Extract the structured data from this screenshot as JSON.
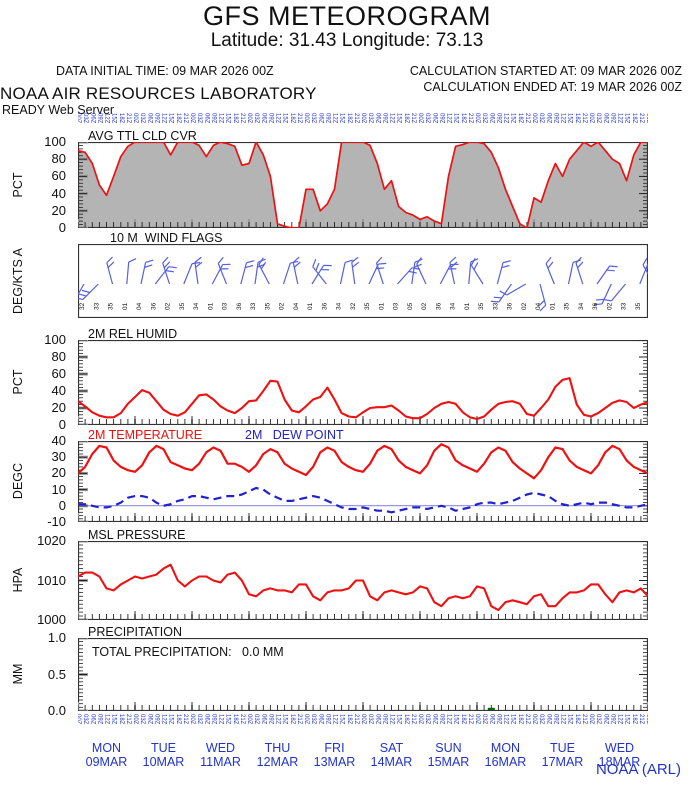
{
  "header": {
    "title": "GFS METEOROGRAM",
    "subtitle": "Latitude: 31.43 Longitude:  73.13",
    "data_initial_time": "DATA INITIAL TIME: 09 MAR 2026 00Z",
    "calc_started": "CALCULATION STARTED AT: 09 MAR 2026 00Z",
    "calc_ended": "CALCULATION ENDED AT: 19 MAR 2026 00Z",
    "org": "NOAA AIR RESOURCES LABORATORY",
    "server": "READY Web Server"
  },
  "footer": {
    "credit": "NOAA (ARL)"
  },
  "colors": {
    "red_line": "#ee1111",
    "blue_text": "#2233cc",
    "barb_blue": "#5560dd",
    "cloud_fill": "#b4b4b4",
    "axis": "#333333",
    "precip_green": "#006600"
  },
  "time_axis": {
    "start_hour": 0,
    "end_hour": 240,
    "tick_step_hours": 3,
    "tick_label_cycle": [
      "00Z",
      "03Z",
      "06Z",
      "09Z",
      "12Z",
      "15Z",
      "18Z",
      "21Z"
    ],
    "days": [
      {
        "name": "MON",
        "date": "09MAR"
      },
      {
        "name": "TUE",
        "date": "10MAR"
      },
      {
        "name": "WED",
        "date": "11MAR"
      },
      {
        "name": "THU",
        "date": "12MAR"
      },
      {
        "name": "FRI",
        "date": "13MAR"
      },
      {
        "name": "SAT",
        "date": "14MAR"
      },
      {
        "name": "SUN",
        "date": "15MAR"
      },
      {
        "name": "MON",
        "date": "16MAR"
      },
      {
        "name": "TUE",
        "date": "17MAR"
      },
      {
        "name": "WED",
        "date": "18MAR"
      }
    ]
  },
  "chart_data": [
    {
      "id": "cloud",
      "type": "area",
      "title": "AVG TTL CLD CVR",
      "ylabel": "PCT",
      "ylim": [
        0,
        100
      ],
      "ytick_vals": [
        0,
        20,
        40,
        60,
        80,
        100
      ],
      "yticks": [
        "0",
        "20",
        "40",
        "60",
        "80",
        "100"
      ],
      "minor_step": 4,
      "x_step_hours": 3,
      "values": [
        90,
        88,
        75,
        50,
        38,
        60,
        83,
        95,
        100,
        100,
        100,
        100,
        100,
        85,
        100,
        100,
        100,
        96,
        83,
        96,
        100,
        98,
        95,
        73,
        75,
        100,
        85,
        60,
        5,
        2,
        0,
        0,
        45,
        45,
        20,
        28,
        45,
        100,
        100,
        100,
        100,
        96,
        75,
        45,
        55,
        25,
        18,
        15,
        10,
        13,
        8,
        5,
        60,
        95,
        97,
        100,
        100,
        98,
        88,
        70,
        45,
        25,
        5,
        0,
        35,
        30,
        55,
        75,
        60,
        80,
        90,
        100,
        95,
        100,
        90,
        80,
        75,
        55,
        85,
        100,
        100
      ]
    },
    {
      "id": "wind",
      "type": "wind",
      "title": "10 M  WIND FLAGS",
      "ylabel": "DEG/KTS A",
      "barb_step_hours": 6,
      "barbs": [
        [
          -150,
          2
        ],
        [
          -135,
          3
        ],
        [
          -15,
          2
        ],
        [
          5,
          1
        ],
        [
          12,
          2
        ],
        [
          38,
          2
        ],
        [
          -18,
          2
        ],
        [
          22,
          1
        ],
        [
          -8,
          2
        ],
        [
          28,
          2
        ],
        [
          -22,
          1
        ],
        [
          15,
          2
        ],
        [
          8,
          2
        ],
        [
          -28,
          2
        ],
        [
          18,
          1
        ],
        [
          -12,
          2
        ],
        [
          32,
          2
        ],
        [
          -38,
          2
        ],
        [
          12,
          1
        ],
        [
          -8,
          2
        ],
        [
          25,
          2
        ],
        [
          -18,
          1
        ],
        [
          42,
          2
        ],
        [
          8,
          2
        ],
        [
          -25,
          1
        ],
        [
          28,
          2
        ],
        [
          -12,
          2
        ],
        [
          5,
          1
        ],
        [
          -32,
          2
        ],
        [
          15,
          2
        ],
        [
          -145,
          2
        ],
        [
          -120,
          1
        ],
        [
          165,
          2
        ],
        [
          -22,
          2
        ],
        [
          12,
          1
        ],
        [
          -18,
          2
        ],
        [
          35,
          2
        ],
        [
          -155,
          2
        ],
        [
          -140,
          1
        ],
        [
          22,
          2
        ],
        [
          -30,
          2
        ]
      ],
      "dir_labels": [
        "32",
        "33",
        "35",
        "01",
        "04",
        "36",
        "02",
        "35",
        "34",
        "01",
        "03",
        "36",
        "33",
        "35",
        "02",
        "04",
        "01",
        "36",
        "34",
        "32",
        "35",
        "01",
        "03",
        "05",
        "02",
        "36",
        "34",
        "01",
        "35",
        "33",
        "36",
        "02",
        "04",
        "01",
        "35",
        "34",
        "36",
        "02",
        "33",
        "35",
        "01"
      ]
    },
    {
      "id": "humid",
      "type": "line",
      "title": "2M REL HUMID",
      "ylabel": "PCT",
      "ylim": [
        0,
        100
      ],
      "ytick_vals": [
        0,
        20,
        40,
        60,
        80,
        100
      ],
      "yticks": [
        "0",
        "20",
        "40",
        "60",
        "80",
        "100"
      ],
      "minor_step": 4,
      "x_step_hours": 3,
      "values": [
        28,
        22,
        15,
        11,
        9,
        9,
        14,
        25,
        33,
        41,
        38,
        28,
        18,
        13,
        11,
        15,
        25,
        35,
        36,
        30,
        22,
        17,
        14,
        20,
        28,
        29,
        40,
        52,
        51,
        30,
        17,
        15,
        22,
        30,
        33,
        44,
        30,
        14,
        10,
        9,
        15,
        20,
        21,
        21,
        23,
        17,
        10,
        8,
        8,
        13,
        20,
        25,
        27,
        25,
        15,
        9,
        7,
        10,
        18,
        25,
        27,
        28,
        25,
        13,
        11,
        20,
        30,
        45,
        53,
        55,
        24,
        12,
        10,
        14,
        20,
        26,
        29,
        27,
        20,
        24,
        27
      ]
    },
    {
      "id": "temp",
      "type": "lines",
      "title": "2M TEMPERATURE",
      "title2": "2M   DEW POINT",
      "ylabel": "DEGC",
      "ylim": [
        -10,
        40
      ],
      "ytick_vals": [
        -10,
        0,
        10,
        20,
        30,
        40
      ],
      "yticks": [
        "-10",
        "0",
        "10",
        "20",
        "30",
        "40"
      ],
      "minor_step": 2,
      "zero_line": 0,
      "x_step_hours": 3,
      "series": [
        {
          "name": "2M TEMPERATURE",
          "color": "#ee1111",
          "dash": null,
          "values": [
            20,
            24,
            32,
            37,
            36,
            28,
            24,
            22,
            21,
            25,
            33,
            37,
            35,
            27,
            25,
            23,
            22,
            26,
            33,
            36,
            34,
            26,
            26,
            24,
            21,
            25,
            32,
            35,
            33,
            26,
            23,
            21,
            19,
            24,
            33,
            36,
            34,
            27,
            24,
            22,
            21,
            26,
            34,
            37,
            35,
            28,
            24,
            22,
            20,
            25,
            34,
            38,
            36,
            28,
            25,
            23,
            21,
            26,
            33,
            36,
            34,
            27,
            23,
            20,
            17,
            22,
            30,
            36,
            35,
            28,
            24,
            22,
            20,
            25,
            33,
            37,
            35,
            28,
            24,
            22,
            20
          ]
        },
        {
          "name": "2M DEW POINT",
          "color": "#2222cc",
          "dash": "8 5",
          "values": [
            1,
            1,
            0,
            -1,
            -1,
            0,
            2,
            5,
            6,
            6,
            5,
            2,
            0,
            1,
            3,
            4,
            6,
            6,
            5,
            4,
            5,
            6,
            6,
            7,
            9,
            11,
            10,
            7,
            5,
            3,
            3,
            4,
            5,
            6,
            5,
            3,
            1,
            -1,
            -2,
            -2,
            -1,
            -2,
            -3,
            -3,
            -4,
            -3,
            -2,
            -1,
            -1,
            -2,
            -1,
            0,
            -1,
            -3,
            -2,
            -1,
            1,
            2,
            2,
            1,
            2,
            3,
            5,
            7,
            8,
            7,
            6,
            3,
            1,
            0,
            1,
            2,
            1,
            2,
            2,
            1,
            0,
            -1,
            -1,
            0,
            1
          ]
        }
      ]
    },
    {
      "id": "pressure",
      "type": "line",
      "title": "MSL PRESSURE",
      "ylabel": "HPA",
      "ylim": [
        1000,
        1020
      ],
      "ytick_vals": [
        1000,
        1010,
        1020
      ],
      "yticks": [
        "1000",
        "1010",
        "1020"
      ],
      "minor_step": 1,
      "x_step_hours": 3,
      "values": [
        1011,
        1012,
        1012,
        1011,
        1008,
        1007.5,
        1009,
        1010,
        1011,
        1010.5,
        1011,
        1011.5,
        1013,
        1014,
        1010,
        1008.5,
        1010,
        1011,
        1011,
        1010,
        1009.5,
        1011.5,
        1012,
        1010,
        1006.5,
        1006,
        1007.5,
        1008,
        1007.5,
        1007.5,
        1007,
        1009,
        1009,
        1006,
        1005,
        1007,
        1007.5,
        1007.5,
        1008,
        1010,
        1010,
        1006,
        1005,
        1007,
        1007.5,
        1007,
        1006.5,
        1007,
        1008.5,
        1008,
        1004.5,
        1003.5,
        1005.5,
        1006,
        1005.5,
        1006,
        1008.5,
        1008,
        1003.5,
        1002.5,
        1004.5,
        1005,
        1004.5,
        1004,
        1006,
        1006.5,
        1003.5,
        1003.5,
        1005.5,
        1007,
        1007,
        1007.5,
        1009,
        1009,
        1006.5,
        1004.5,
        1007,
        1007.5,
        1007,
        1008,
        1006
      ]
    },
    {
      "id": "precip",
      "type": "bars",
      "title": "PRECIPITATION",
      "annotation": "TOTAL PRECIPITATION:   0.0 MM",
      "ylabel": "MM",
      "ylim": [
        0,
        1
      ],
      "ytick_vals": [
        0,
        0.5,
        1
      ],
      "yticks": [
        "0.0",
        "0.5",
        "1.0"
      ],
      "minor_step": 0.05,
      "x_step_hours": 3,
      "values": [
        0,
        0,
        0,
        0,
        0,
        0,
        0,
        0,
        0,
        0,
        0,
        0,
        0,
        0,
        0,
        0,
        0,
        0,
        0,
        0,
        0,
        0,
        0,
        0,
        0,
        0,
        0,
        0,
        0,
        0,
        0,
        0,
        0,
        0,
        0,
        0,
        0,
        0,
        0,
        0,
        0,
        0,
        0,
        0,
        0,
        0,
        0,
        0,
        0,
        0,
        0,
        0,
        0,
        0,
        0,
        0,
        0,
        0,
        0.03,
        0,
        0,
        0,
        0,
        0,
        0,
        0,
        0,
        0,
        0,
        0,
        0,
        0,
        0,
        0,
        0,
        0,
        0,
        0,
        0,
        0,
        0
      ]
    }
  ]
}
